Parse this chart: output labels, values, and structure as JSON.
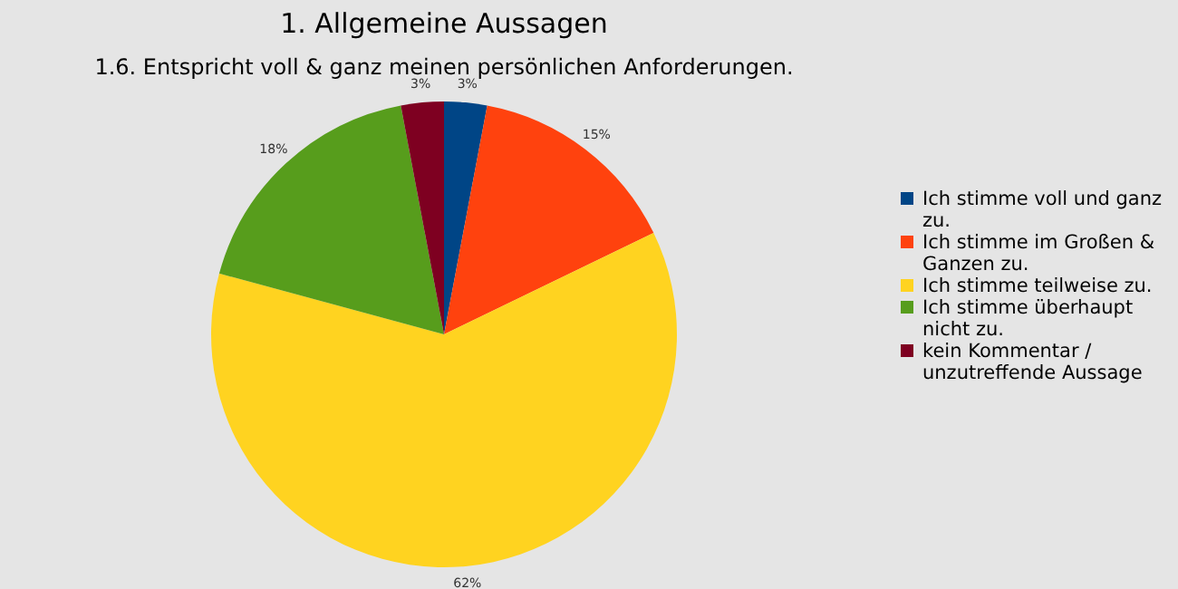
{
  "chart_data": {
    "type": "pie",
    "title": "1. Allgemeine Aussagen",
    "subtitle": "1.6. Entspricht voll & ganz meinen persönlichen Anforderungen.",
    "categories": [
      "Ich stimme voll und ganz zu.",
      "Ich stimme im Großen & Ganzen zu.",
      "Ich stimme teilweise zu.",
      "Ich stimme überhaupt nicht zu.",
      "kein Kommentar / unzutreffende Aussage"
    ],
    "values": [
      3,
      15,
      62,
      18,
      3
    ],
    "colors": [
      "#004586",
      "#ff420e",
      "#ffd320",
      "#579d1c",
      "#7e0021"
    ],
    "value_labels": [
      "3%",
      "15%",
      "62%",
      "18%",
      "3%"
    ],
    "legend": "right"
  }
}
